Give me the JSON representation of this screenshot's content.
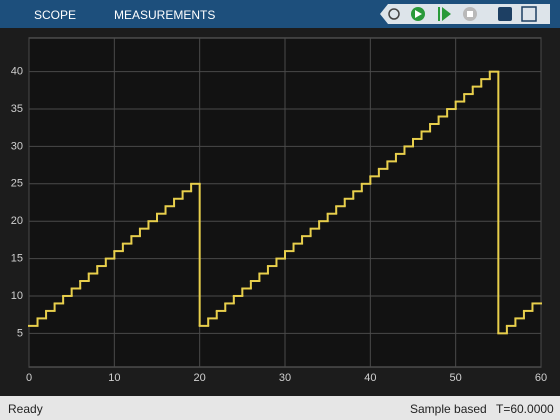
{
  "toolbar": {
    "tabs": [
      "SCOPE",
      "MEASUREMENTS"
    ]
  },
  "chart_data": {
    "type": "stairs",
    "color": "#e8cf4c",
    "grid": true,
    "x": [
      0,
      1,
      2,
      3,
      4,
      5,
      6,
      7,
      8,
      9,
      10,
      11,
      12,
      13,
      14,
      15,
      16,
      17,
      18,
      19,
      20,
      21,
      22,
      23,
      24,
      25,
      26,
      27,
      28,
      29,
      30,
      31,
      32,
      33,
      34,
      35,
      36,
      37,
      38,
      39,
      40,
      41,
      42,
      43,
      44,
      45,
      46,
      47,
      48,
      49,
      50,
      51,
      52,
      53,
      54,
      55,
      56,
      57,
      58,
      59
    ],
    "values": [
      6,
      7,
      8,
      9,
      10,
      11,
      12,
      13,
      14,
      15,
      16,
      17,
      18,
      19,
      20,
      21,
      22,
      23,
      24,
      25,
      6,
      7,
      8,
      9,
      10,
      11,
      12,
      13,
      14,
      15,
      16,
      17,
      18,
      19,
      20,
      21,
      22,
      23,
      24,
      25,
      26,
      27,
      28,
      29,
      30,
      31,
      32,
      33,
      34,
      35,
      36,
      37,
      38,
      39,
      40,
      5,
      6,
      7,
      8,
      9
    ],
    "xlim": [
      0,
      60
    ],
    "xticks": [
      0,
      10,
      20,
      30,
      40,
      50,
      60
    ],
    "ylim": [
      0.5,
      44.5
    ],
    "yticks": [
      5,
      10,
      15,
      20,
      25,
      30,
      35,
      40
    ]
  },
  "status": {
    "left": "Ready",
    "mode": "Sample based",
    "time": "T=60.0000"
  }
}
